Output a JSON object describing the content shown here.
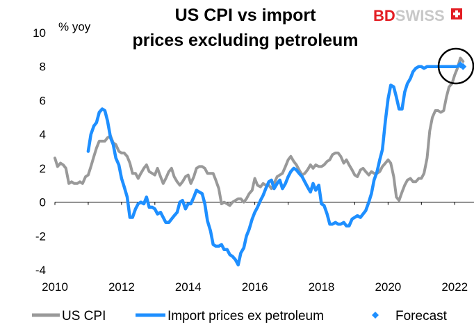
{
  "logo": {
    "part1": "BD",
    "part2": "SWISS",
    "colors": {
      "primary": "#e31e24",
      "secondary": "#c8c8c8"
    }
  },
  "chart_data": {
    "type": "line",
    "title": "US CPI vs import prices excluding petroleum",
    "title_lines": [
      "US CPI vs import",
      "prices excluding petroleum"
    ],
    "ylabel": "% yoy",
    "xlim": [
      2010,
      2022.6
    ],
    "ylim": [
      -4,
      10
    ],
    "x_ticks": [
      "2010",
      "2012",
      "2014",
      "2016",
      "2018",
      "2020",
      "2022"
    ],
    "y_ticks": [
      "10",
      "8",
      "6",
      "4",
      "2",
      "0",
      "-2",
      "-4"
    ],
    "grid": false,
    "legend": "bottom",
    "annotation": "circle around forecast",
    "series": [
      {
        "name": "US CPI",
        "color": "#999999",
        "x": [
          2010.0,
          2010.08,
          2010.17,
          2010.25,
          2010.33,
          2010.42,
          2010.5,
          2010.58,
          2010.67,
          2010.75,
          2010.83,
          2010.92,
          2011.0,
          2011.08,
          2011.17,
          2011.25,
          2011.33,
          2011.42,
          2011.5,
          2011.58,
          2011.67,
          2011.75,
          2011.83,
          2011.92,
          2012.0,
          2012.08,
          2012.17,
          2012.25,
          2012.33,
          2012.42,
          2012.5,
          2012.58,
          2012.67,
          2012.75,
          2012.83,
          2012.92,
          2013.0,
          2013.08,
          2013.17,
          2013.25,
          2013.33,
          2013.42,
          2013.5,
          2013.58,
          2013.67,
          2013.75,
          2013.83,
          2013.92,
          2014.0,
          2014.08,
          2014.17,
          2014.25,
          2014.33,
          2014.42,
          2014.5,
          2014.58,
          2014.67,
          2014.75,
          2014.83,
          2014.92,
          2015.0,
          2015.08,
          2015.17,
          2015.25,
          2015.33,
          2015.42,
          2015.5,
          2015.58,
          2015.67,
          2015.75,
          2015.83,
          2015.92,
          2016.0,
          2016.08,
          2016.17,
          2016.25,
          2016.33,
          2016.42,
          2016.5,
          2016.58,
          2016.67,
          2016.75,
          2016.83,
          2016.92,
          2017.0,
          2017.08,
          2017.17,
          2017.25,
          2017.33,
          2017.42,
          2017.5,
          2017.58,
          2017.67,
          2017.75,
          2017.83,
          2017.92,
          2018.0,
          2018.08,
          2018.17,
          2018.25,
          2018.33,
          2018.42,
          2018.5,
          2018.58,
          2018.67,
          2018.75,
          2018.83,
          2018.92,
          2019.0,
          2019.08,
          2019.17,
          2019.25,
          2019.33,
          2019.42,
          2019.5,
          2019.58,
          2019.67,
          2019.75,
          2019.83,
          2019.92,
          2020.0,
          2020.08,
          2020.17,
          2020.25,
          2020.33,
          2020.42,
          2020.5,
          2020.58,
          2020.67,
          2020.75,
          2020.83,
          2020.92,
          2021.0,
          2021.08,
          2021.17,
          2021.25,
          2021.33,
          2021.42,
          2021.5,
          2021.58,
          2021.67,
          2021.75,
          2021.83,
          2021.92,
          2022.0,
          2022.08,
          2022.17,
          2022.25
        ],
        "values": [
          2.6,
          2.1,
          2.3,
          2.2,
          2.0,
          1.1,
          1.2,
          1.1,
          1.1,
          1.2,
          1.1,
          1.5,
          1.6,
          2.1,
          2.7,
          3.2,
          3.6,
          3.6,
          3.6,
          3.8,
          3.9,
          3.5,
          3.4,
          3.0,
          2.9,
          2.9,
          2.7,
          2.3,
          1.7,
          1.7,
          1.4,
          1.7,
          2.0,
          2.2,
          1.8,
          1.7,
          1.6,
          2.0,
          1.5,
          1.1,
          1.4,
          1.8,
          2.0,
          1.5,
          1.2,
          1.0,
          1.2,
          1.5,
          1.6,
          1.1,
          1.5,
          2.0,
          2.1,
          2.1,
          2.0,
          1.7,
          1.7,
          1.7,
          1.3,
          0.8,
          -0.1,
          0.0,
          -0.1,
          -0.2,
          0.0,
          0.1,
          0.2,
          0.2,
          0.0,
          0.2,
          0.5,
          0.7,
          1.4,
          1.0,
          0.9,
          1.1,
          1.0,
          1.0,
          0.8,
          1.1,
          1.5,
          1.6,
          1.7,
          2.1,
          2.5,
          2.7,
          2.4,
          2.2,
          1.9,
          1.6,
          1.7,
          1.9,
          2.2,
          2.0,
          2.2,
          2.1,
          2.1,
          2.2,
          2.4,
          2.5,
          2.8,
          2.9,
          2.9,
          2.7,
          2.3,
          2.5,
          2.2,
          1.9,
          1.6,
          1.5,
          1.9,
          2.0,
          1.8,
          1.6,
          1.8,
          1.7,
          1.7,
          1.8,
          2.1,
          2.3,
          2.5,
          2.3,
          1.5,
          0.3,
          0.1,
          0.6,
          1.0,
          1.3,
          1.4,
          1.2,
          1.2,
          1.4,
          1.4,
          1.7,
          2.6,
          4.2,
          5.0,
          5.4,
          5.4,
          5.3,
          5.4,
          6.2,
          6.8,
          7.0,
          7.5,
          7.9,
          8.5,
          8.3
        ]
      },
      {
        "name": "Import prices ex petroleum",
        "color": "#1e8fff",
        "x": [
          2011.0,
          2011.08,
          2011.17,
          2011.25,
          2011.33,
          2011.42,
          2011.5,
          2011.58,
          2011.67,
          2011.75,
          2011.83,
          2011.92,
          2012.0,
          2012.08,
          2012.17,
          2012.25,
          2012.33,
          2012.42,
          2012.5,
          2012.58,
          2012.67,
          2012.75,
          2012.83,
          2012.92,
          2013.0,
          2013.08,
          2013.17,
          2013.25,
          2013.33,
          2013.42,
          2013.5,
          2013.58,
          2013.67,
          2013.75,
          2013.83,
          2013.92,
          2014.0,
          2014.08,
          2014.17,
          2014.25,
          2014.33,
          2014.42,
          2014.5,
          2014.58,
          2014.67,
          2014.75,
          2014.83,
          2014.92,
          2015.0,
          2015.08,
          2015.17,
          2015.25,
          2015.33,
          2015.42,
          2015.5,
          2015.58,
          2015.67,
          2015.75,
          2015.83,
          2015.92,
          2016.0,
          2016.08,
          2016.17,
          2016.25,
          2016.33,
          2016.42,
          2016.5,
          2016.58,
          2016.67,
          2016.75,
          2016.83,
          2016.92,
          2017.0,
          2017.08,
          2017.17,
          2017.25,
          2017.33,
          2017.42,
          2017.5,
          2017.58,
          2017.67,
          2017.75,
          2017.83,
          2017.92,
          2018.0,
          2018.08,
          2018.17,
          2018.25,
          2018.33,
          2018.42,
          2018.5,
          2018.58,
          2018.67,
          2018.75,
          2018.83,
          2018.92,
          2019.0,
          2019.08,
          2019.17,
          2019.25,
          2019.33,
          2019.42,
          2019.5,
          2019.58,
          2019.67,
          2019.75,
          2019.83,
          2019.92,
          2020.0,
          2020.08,
          2020.17,
          2020.25,
          2020.33,
          2020.42,
          2020.5,
          2020.58,
          2020.67,
          2020.75,
          2020.83,
          2020.92,
          2021.0,
          2021.08,
          2021.17,
          2021.25,
          2021.33,
          2021.42,
          2021.5,
          2021.58,
          2021.67,
          2021.75,
          2021.83,
          2021.92,
          2022.0,
          2022.08
        ],
        "values": [
          3.0,
          4.0,
          4.5,
          4.7,
          5.3,
          5.5,
          5.4,
          4.8,
          3.8,
          3.4,
          2.6,
          2.2,
          1.4,
          0.9,
          0.3,
          -0.9,
          -0.9,
          -0.4,
          -0.1,
          0.0,
          -0.1,
          0.3,
          -0.3,
          -0.3,
          -0.4,
          -0.7,
          -0.6,
          -0.9,
          -1.2,
          -1.2,
          -1.0,
          -0.8,
          -0.6,
          0.0,
          0.1,
          -0.4,
          -0.1,
          -0.1,
          0.3,
          0.7,
          0.6,
          0.5,
          -0.1,
          -1.1,
          -1.7,
          -2.5,
          -2.6,
          -2.6,
          -2.5,
          -2.8,
          -2.8,
          -3.1,
          -3.2,
          -3.4,
          -3.7,
          -3.0,
          -2.7,
          -2.0,
          -1.6,
          -1.0,
          -0.6,
          -0.3,
          0.1,
          0.4,
          0.8,
          1.2,
          1.3,
          0.8,
          1.1,
          1.3,
          0.8,
          1.1,
          1.5,
          1.8,
          2.0,
          1.9,
          1.7,
          1.5,
          1.2,
          0.9,
          0.6,
          1.1,
          0.7,
          1.0,
          -0.1,
          -0.2,
          -0.7,
          -1.3,
          -1.3,
          -1.2,
          -1.3,
          -1.3,
          -1.2,
          -1.4,
          -1.4,
          -1.0,
          -0.9,
          -0.8,
          -0.9,
          -0.7,
          -0.5,
          0.0,
          0.5,
          1.3,
          1.8,
          2.5,
          3.1,
          4.8,
          6.1,
          6.9,
          6.8,
          6.2,
          5.5,
          5.5,
          6.5,
          7.0,
          7.3,
          7.7,
          7.9,
          8.0,
          8.0,
          7.9,
          8.0,
          8.0,
          8.0,
          8.0,
          8.0,
          8.0,
          8.0,
          8.0,
          8.0,
          8.0,
          8.0,
          8.0
        ]
      },
      {
        "name": "Forecast",
        "color": "#1e8fff",
        "x": [
          2022.17,
          2022.25
        ],
        "values": [
          8.1,
          8.0
        ]
      }
    ]
  }
}
